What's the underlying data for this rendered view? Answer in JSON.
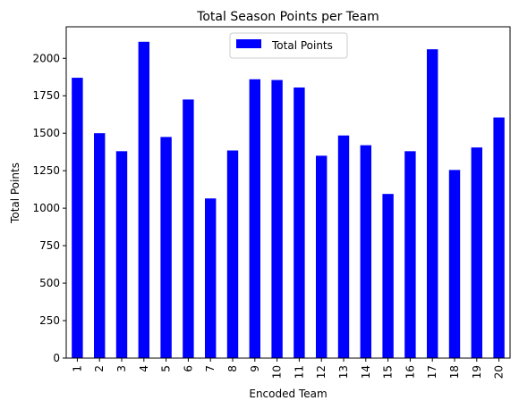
{
  "chart_data": {
    "type": "bar",
    "title": "Total Season Points per Team",
    "xlabel": "Encoded Team",
    "ylabel": "Total Points",
    "categories": [
      "1",
      "2",
      "3",
      "4",
      "5",
      "6",
      "7",
      "8",
      "9",
      "10",
      "11",
      "12",
      "13",
      "14",
      "15",
      "16",
      "17",
      "18",
      "19",
      "20"
    ],
    "series": [
      {
        "name": "Total Points",
        "color": "#0000ff",
        "values": [
          1870,
          1500,
          1380,
          2110,
          1475,
          1725,
          1065,
          1385,
          1860,
          1855,
          1805,
          1350,
          1485,
          1420,
          1095,
          1380,
          2060,
          1255,
          1405,
          1605
        ]
      }
    ],
    "yticks": [
      "0",
      "250",
      "500",
      "750",
      "1000",
      "1250",
      "1500",
      "1750",
      "2000"
    ],
    "ylim": [
      0,
      2210
    ],
    "grid": false,
    "legend": "upper center"
  }
}
